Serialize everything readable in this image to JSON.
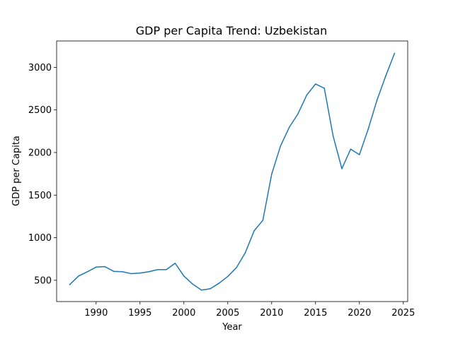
{
  "chart_data": {
    "type": "line",
    "title": "GDP per Capita Trend: Uzbekistan",
    "xlabel": "Year",
    "ylabel": "GDP per Capita",
    "xlim": [
      1985.5,
      2025.5
    ],
    "ylim": [
      250,
      3310
    ],
    "x_ticks": [
      1990,
      1995,
      2000,
      2005,
      2010,
      2015,
      2020,
      2025
    ],
    "x_tick_labels": [
      "1990",
      "1995",
      "2000",
      "2005",
      "2010",
      "2015",
      "2020",
      "2025"
    ],
    "y_ticks": [
      500,
      1000,
      1500,
      2000,
      2500,
      3000
    ],
    "y_tick_labels": [
      "500",
      "1000",
      "1500",
      "2000",
      "2500",
      "3000"
    ],
    "grid": false,
    "series": [
      {
        "color": "#1f77b4",
        "x": [
          1987,
          1988,
          1989,
          1990,
          1991,
          1992,
          1993,
          1994,
          1995,
          1996,
          1997,
          1998,
          1999,
          2000,
          2001,
          2002,
          2003,
          2004,
          2005,
          2006,
          2007,
          2008,
          2009,
          2010,
          2011,
          2012,
          2013,
          2014,
          2015,
          2016,
          2017,
          2018,
          2019,
          2020,
          2021,
          2022,
          2023,
          2024
        ],
        "values": [
          450,
          550,
          600,
          655,
          660,
          605,
          600,
          578,
          585,
          600,
          625,
          625,
          700,
          550,
          455,
          385,
          400,
          465,
          545,
          650,
          825,
          1080,
          1205,
          1745,
          2075,
          2295,
          2455,
          2675,
          2805,
          2755,
          2195,
          1810,
          2040,
          1975,
          2275,
          2615,
          2900,
          3165
        ]
      }
    ]
  }
}
